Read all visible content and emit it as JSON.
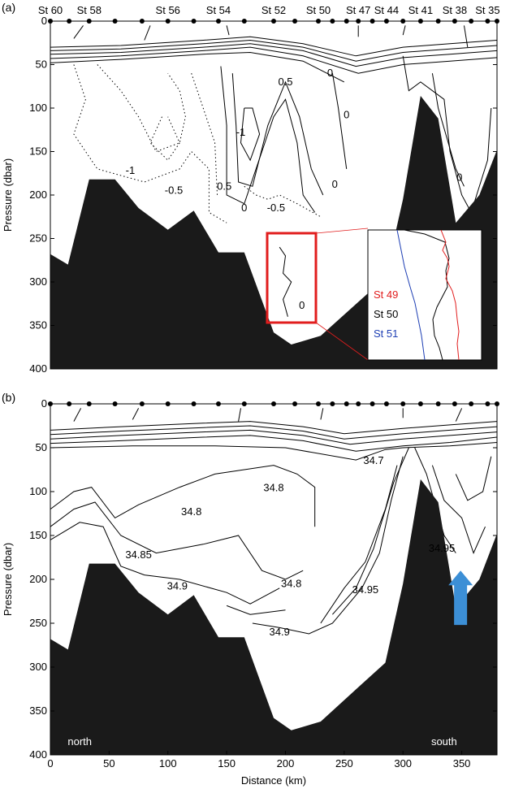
{
  "chart_data": [
    {
      "type": "contour",
      "panel_label": "(a)",
      "xlabel": "",
      "ylabel": "Pressure (dbar)",
      "xlim": [
        0,
        380
      ],
      "ylim": [
        400,
        0
      ],
      "yticks": [
        0,
        50,
        100,
        150,
        200,
        250,
        300,
        350,
        400
      ],
      "station_labels": [
        {
          "label": "St 60",
          "x": 0
        },
        {
          "label": "St 58",
          "x": 33
        },
        {
          "label": "St 56",
          "x": 100
        },
        {
          "label": "St 54",
          "x": 143
        },
        {
          "label": "St 52",
          "x": 190
        },
        {
          "label": "St 50",
          "x": 228
        },
        {
          "label": "St 47",
          "x": 262
        },
        {
          "label": "St 44",
          "x": 286
        },
        {
          "label": "St 41",
          "x": 315
        },
        {
          "label": "St 38",
          "x": 344
        },
        {
          "label": "St 35",
          "x": 372
        }
      ],
      "station_x": [
        0,
        16,
        33,
        55,
        78,
        100,
        122,
        143,
        165,
        190,
        208,
        228,
        240,
        252,
        262,
        274,
        286,
        300,
        315,
        330,
        344,
        358,
        372,
        380
      ],
      "contour_labels": [
        {
          "text": "0.5",
          "x": 200,
          "y": 70
        },
        {
          "text": "0",
          "x": 238,
          "y": 60
        },
        {
          "text": "0",
          "x": 252,
          "y": 108
        },
        {
          "text": "-1",
          "x": 162,
          "y": 128
        },
        {
          "text": "-1",
          "x": 68,
          "y": 172
        },
        {
          "text": "-0.5",
          "x": 105,
          "y": 195
        },
        {
          "text": "0.5",
          "x": 148,
          "y": 190
        },
        {
          "text": "0",
          "x": 165,
          "y": 215
        },
        {
          "text": "-0.5",
          "x": 192,
          "y": 215
        },
        {
          "text": "0",
          "x": 242,
          "y": 188
        },
        {
          "text": "0",
          "x": 348,
          "y": 180
        },
        {
          "text": "0",
          "x": 214,
          "y": 327
        }
      ],
      "inset": {
        "series": [
          {
            "name": "St 49",
            "color": "#e11d1d"
          },
          {
            "name": "St 50",
            "color": "#000000"
          },
          {
            "name": "St 51",
            "color": "#1e3fb4"
          }
        ]
      },
      "bathymetry": [
        [
          0,
          268
        ],
        [
          15,
          280
        ],
        [
          33,
          182
        ],
        [
          55,
          182
        ],
        [
          75,
          215
        ],
        [
          100,
          240
        ],
        [
          122,
          218
        ],
        [
          143,
          266
        ],
        [
          165,
          266
        ],
        [
          190,
          358
        ],
        [
          205,
          372
        ],
        [
          230,
          362
        ],
        [
          262,
          323
        ],
        [
          285,
          295
        ],
        [
          300,
          205
        ],
        [
          315,
          86
        ],
        [
          330,
          112
        ],
        [
          345,
          232
        ],
        [
          365,
          200
        ],
        [
          380,
          148
        ]
      ]
    },
    {
      "type": "contour",
      "panel_label": "(b)",
      "xlabel": "Distance (km)",
      "ylabel": "Pressure (dbar)",
      "xlim": [
        0,
        380
      ],
      "ylim": [
        400,
        0
      ],
      "xticks": [
        0,
        50,
        100,
        150,
        200,
        250,
        300,
        350
      ],
      "yticks": [
        0,
        50,
        100,
        150,
        200,
        250,
        300,
        350,
        400
      ],
      "contour_labels": [
        {
          "text": "34.7",
          "x": 275,
          "y": 65
        },
        {
          "text": "34.8",
          "x": 190,
          "y": 96
        },
        {
          "text": "34.8",
          "x": 120,
          "y": 123
        },
        {
          "text": "34.85",
          "x": 75,
          "y": 172
        },
        {
          "text": "34.95",
          "x": 333,
          "y": 165
        },
        {
          "text": "34.9",
          "x": 108,
          "y": 208
        },
        {
          "text": "34.8",
          "x": 205,
          "y": 205
        },
        {
          "text": "34.95",
          "x": 268,
          "y": 212
        },
        {
          "text": "34.9",
          "x": 195,
          "y": 260
        }
      ],
      "annotations": [
        {
          "text": "north",
          "x": 25,
          "y": 385
        },
        {
          "text": "south",
          "x": 335,
          "y": 385
        }
      ],
      "arrow": {
        "x": 349,
        "y_tip": 190,
        "y_base": 252,
        "color": "#3c8fd6"
      },
      "bathymetry": [
        [
          0,
          268
        ],
        [
          15,
          280
        ],
        [
          33,
          182
        ],
        [
          55,
          182
        ],
        [
          75,
          215
        ],
        [
          100,
          240
        ],
        [
          122,
          218
        ],
        [
          143,
          266
        ],
        [
          165,
          266
        ],
        [
          190,
          358
        ],
        [
          205,
          372
        ],
        [
          230,
          362
        ],
        [
          262,
          323
        ],
        [
          285,
          295
        ],
        [
          300,
          205
        ],
        [
          315,
          86
        ],
        [
          330,
          112
        ],
        [
          345,
          232
        ],
        [
          365,
          200
        ],
        [
          380,
          148
        ]
      ]
    }
  ]
}
